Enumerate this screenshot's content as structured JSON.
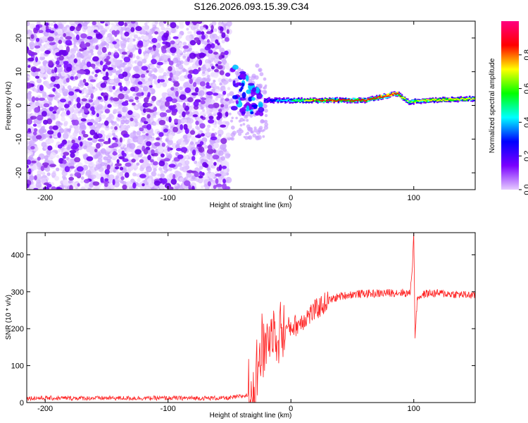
{
  "title": "S126.2026.093.15.39.C34",
  "chart_data": [
    {
      "type": "heatmap",
      "xlabel": "Height of straight line (km)",
      "ylabel": "Frequency (Hz)",
      "xlim": [
        -215,
        150
      ],
      "ylim": [
        -25,
        25
      ],
      "xticks": [
        -200,
        -100,
        0,
        100
      ],
      "yticks": [
        -20,
        -10,
        0,
        10,
        20
      ],
      "grid": false,
      "colorbar": {
        "label": "Normalized spectral amplitude",
        "range": [
          0,
          1
        ],
        "ticks": [
          0.0,
          0.2,
          0.4,
          0.6,
          0.8
        ],
        "tick_labels": [
          "0.0",
          "0.2",
          "0.4",
          "0.6",
          "0.8"
        ],
        "colormap": [
          "#e6ccff",
          "#7a00ff",
          "#0000ff",
          "#00ffff",
          "#00ff00",
          "#ffff00",
          "#ff0000",
          "#ff0080"
        ]
      },
      "features": {
        "noise_region_x": [
          -215,
          -50
        ],
        "transition_x": [
          -50,
          -22
        ],
        "carrier_line": [
          {
            "x": -22,
            "freq": 1.5,
            "amp": 0.25
          },
          {
            "x": 0,
            "freq": 1.5,
            "amp": 0.5
          },
          {
            "x": 20,
            "freq": 1.5,
            "amp": 0.8
          },
          {
            "x": 60,
            "freq": 1.5,
            "amp": 0.85
          },
          {
            "x": 72,
            "freq": 2.5,
            "amp": 0.85
          },
          {
            "x": 86,
            "freq": 3.5,
            "amp": 0.9
          },
          {
            "x": 95,
            "freq": 1.0,
            "amp": 0.6
          },
          {
            "x": 110,
            "freq": 1.5,
            "amp": 0.7
          },
          {
            "x": 150,
            "freq": 2.0,
            "amp": 0.7
          }
        ]
      }
    },
    {
      "type": "line",
      "xlabel": "Height of straight line (km)",
      "ylabel": "SNR (10 * v/v)",
      "xlim": [
        -215,
        150
      ],
      "ylim": [
        0,
        460
      ],
      "xticks": [
        -200,
        -100,
        0,
        100
      ],
      "yticks": [
        0,
        100,
        200,
        300,
        400
      ],
      "grid": false,
      "color": "#ff0000",
      "series": [
        {
          "x": [
            -215,
            -150,
            -100,
            -50,
            -35,
            -30,
            -25,
            -20,
            -15,
            -10,
            -5,
            0,
            5,
            10,
            20,
            30,
            40,
            50,
            60,
            70,
            80,
            90,
            97,
            99,
            100,
            101,
            103,
            110,
            120,
            130,
            140,
            150
          ],
          "values": [
            12,
            12,
            12,
            12,
            20,
            60,
            130,
            175,
            190,
            195,
            200,
            205,
            210,
            225,
            250,
            275,
            288,
            293,
            295,
            295,
            297,
            298,
            295,
            380,
            460,
            180,
            285,
            295,
            296,
            294,
            292,
            290
          ]
        }
      ]
    }
  ]
}
